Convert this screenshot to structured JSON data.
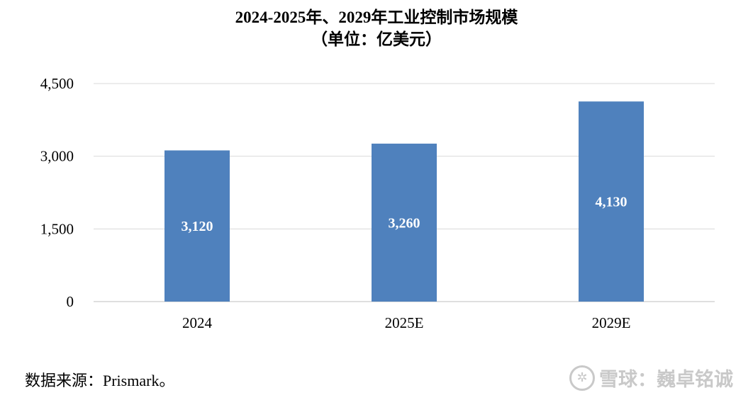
{
  "chart_data": {
    "type": "bar",
    "title": "2024-2025年、2029年工业控制市场规模",
    "subtitle": "（单位：亿美元）",
    "categories": [
      "2024",
      "2025E",
      "2029E"
    ],
    "values": [
      3120,
      3260,
      4130
    ],
    "data_labels": [
      "3,120",
      "3,260",
      "4,130"
    ],
    "ylim": [
      0,
      4500
    ],
    "yticks": [
      0,
      1500,
      3000,
      4500
    ],
    "ytick_labels": [
      "0",
      "1,500",
      "3,000",
      "4,500"
    ],
    "grid": true,
    "bar_color": "#4f81bd",
    "xlabel": "",
    "ylabel": ""
  },
  "source": "数据来源：Prismark。",
  "watermark": {
    "text": "雪球：巍卓铭诚",
    "icon": "snowball-logo-icon"
  }
}
